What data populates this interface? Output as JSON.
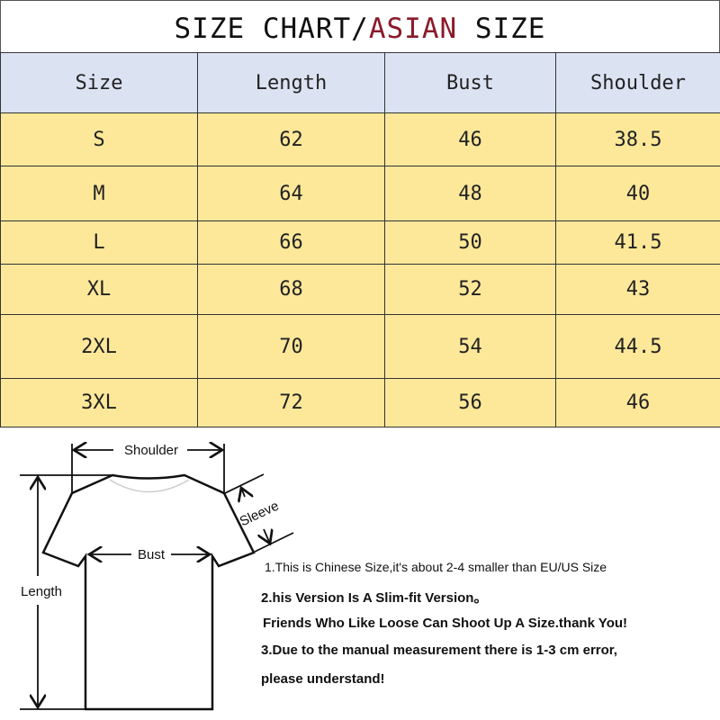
{
  "title": {
    "part1": "SIZE CHART/",
    "highlight": "ASIAN",
    "part2": " SIZE",
    "highlight_color": "#8b1a2a"
  },
  "table": {
    "headers": [
      "Size",
      "Length",
      "Bust",
      "Shoulder"
    ],
    "rows": [
      [
        "S",
        "62",
        "46",
        "38.5"
      ],
      [
        "M",
        "64",
        "48",
        "40"
      ],
      [
        "L",
        "66",
        "50",
        "41.5"
      ],
      [
        "XL",
        "68",
        "52",
        "43"
      ],
      [
        "2XL",
        "70",
        "54",
        "44.5"
      ],
      [
        "3XL",
        "72",
        "56",
        "46"
      ]
    ],
    "header_color": "#dbe3f3",
    "row_color": "#fde89a"
  },
  "diagram": {
    "shoulder": "Shoulder",
    "sleeve": "Sleeve",
    "bust": "Bust",
    "length": "Length"
  },
  "notes": [
    "1.This is Chinese Size,it's about 2-4 smaller than EU/US Size",
    "2.his Version Is A Slim-fit Version。",
    "Friends Who Like Loose Can Shoot Up A Size.thank You!",
    "3.Due to the manual measurement there is 1-3 cm error,",
    "please understand!"
  ]
}
